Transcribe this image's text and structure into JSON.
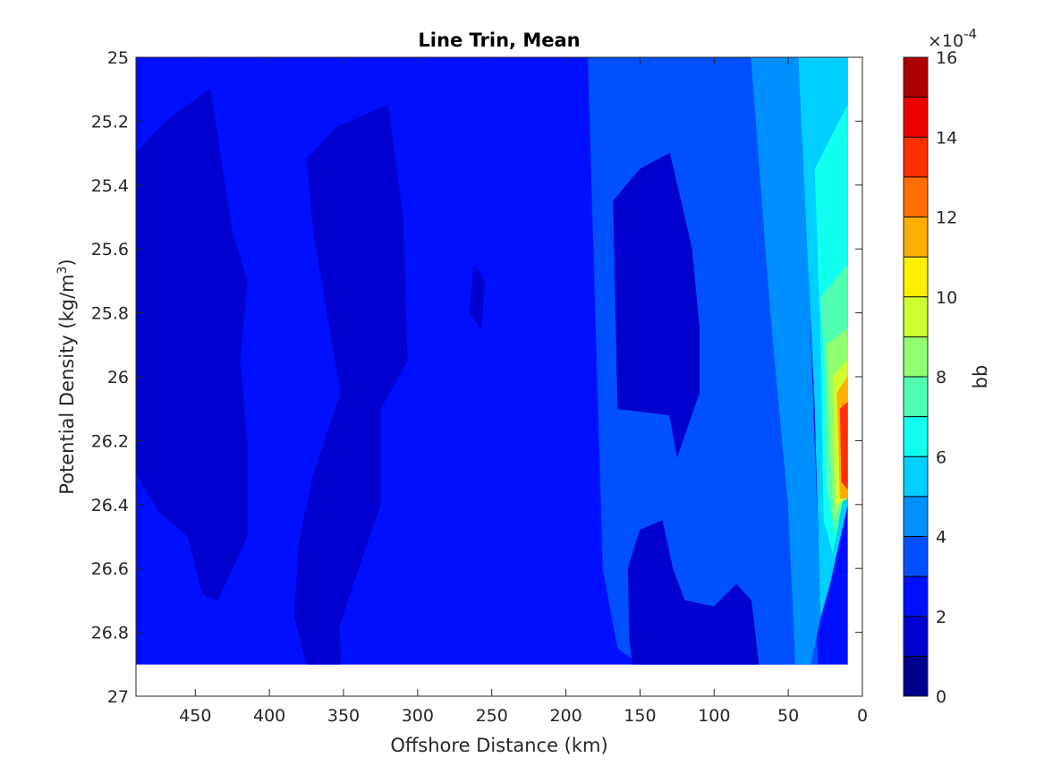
{
  "chart_data": {
    "type": "heatmap",
    "title": "Line Trin, Mean",
    "xlabel": "Offshore Distance (km)",
    "ylabel": "Potential Density (kg/m",
    "ylabel_sup": "3",
    "ylabel_close": ")",
    "x_reversed": true,
    "y_reversed": true,
    "xlim": [
      490,
      0
    ],
    "ylim": [
      25,
      27
    ],
    "x_ticks": [
      450,
      400,
      350,
      300,
      250,
      200,
      150,
      100,
      50,
      0
    ],
    "y_ticks": [
      "25",
      "25.2",
      "25.4",
      "25.6",
      "25.8",
      "26",
      "26.2",
      "26.4",
      "26.6",
      "26.8",
      "27"
    ],
    "colorbar": {
      "label": "bb",
      "exponent_prefix": "×10",
      "exponent": "-4",
      "ticks": [
        0,
        2,
        4,
        6,
        8,
        10,
        12,
        14,
        16
      ],
      "levels": [
        0,
        1,
        2,
        3,
        4,
        5,
        6,
        7,
        8,
        9,
        10,
        11,
        12,
        13,
        14,
        15,
        16
      ],
      "colors": [
        "#00008f",
        "#0000cf",
        "#0010ff",
        "#0050ff",
        "#008fff",
        "#00cfff",
        "#10ffef",
        "#50ffaf",
        "#8fff6f",
        "#cfff30",
        "#ffef00",
        "#ffaf00",
        "#ff6f00",
        "#ff3000",
        "#ef0000",
        "#af0000"
      ]
    },
    "data_extent": {
      "x_min": 10,
      "x_max": 490,
      "y_top": 25,
      "y_bottom": 26.9
    },
    "regions": [
      {
        "level": 2,
        "name": "background",
        "points": [
          [
            490,
            25
          ],
          [
            10,
            25
          ],
          [
            10,
            26.9
          ],
          [
            490,
            26.9
          ]
        ]
      },
      {
        "level": 3,
        "name": "nearshore-band",
        "points": [
          [
            185,
            25
          ],
          [
            50,
            25
          ],
          [
            30,
            26.9
          ],
          [
            150,
            26.9
          ],
          [
            165,
            26.85
          ],
          [
            175,
            26.6
          ]
        ]
      },
      {
        "level": 4,
        "name": "coastal-band",
        "points": [
          [
            75,
            25
          ],
          [
            42,
            25
          ],
          [
            28,
            26.75
          ],
          [
            35,
            26.9
          ],
          [
            45,
            26.9
          ],
          [
            50,
            26.4
          ],
          [
            62,
            25.8
          ]
        ]
      },
      {
        "level": 5,
        "name": "coastal-inner",
        "points": [
          [
            43,
            25
          ],
          [
            10,
            25
          ],
          [
            10,
            26.4
          ],
          [
            22,
            26.65
          ],
          [
            28,
            26.75
          ],
          [
            32,
            26.1
          ],
          [
            38,
            25.5
          ]
        ]
      },
      {
        "level": 6,
        "name": "coastal-high-a",
        "points": [
          [
            32,
            25.35
          ],
          [
            10,
            25.15
          ],
          [
            10,
            26.3
          ],
          [
            20,
            26.55
          ],
          [
            26,
            26.45
          ],
          [
            28,
            25.9
          ]
        ]
      },
      {
        "level": 7,
        "name": "coastal-high-b",
        "points": [
          [
            28,
            25.75
          ],
          [
            10,
            25.65
          ],
          [
            10,
            26.3
          ],
          [
            18,
            26.5
          ],
          [
            24,
            26.35
          ],
          [
            25,
            26
          ]
        ]
      },
      {
        "level": 8,
        "name": "coastal-high-c",
        "points": [
          [
            24,
            25.9
          ],
          [
            10,
            25.85
          ],
          [
            10,
            26.35
          ],
          [
            19,
            26.45
          ],
          [
            22,
            26.2
          ]
        ]
      },
      {
        "level": 9,
        "name": "coastal-high-d",
        "points": [
          [
            20,
            26.0
          ],
          [
            10,
            25.95
          ],
          [
            10,
            26.38
          ],
          [
            18,
            26.4
          ],
          [
            19,
            26.2
          ]
        ]
      },
      {
        "level": 11,
        "name": "coastal-peak-a",
        "points": [
          [
            17,
            26.05
          ],
          [
            10,
            26.0
          ],
          [
            10,
            26.38
          ],
          [
            15,
            26.38
          ],
          [
            16,
            26.2
          ]
        ]
      },
      {
        "level": 13,
        "name": "coastal-peak-b",
        "points": [
          [
            15,
            26.1
          ],
          [
            10,
            26.08
          ],
          [
            10,
            26.35
          ],
          [
            14,
            26.33
          ]
        ]
      },
      {
        "level": 1,
        "name": "offshore-low-west",
        "points": [
          [
            490,
            25.3
          ],
          [
            470,
            25.2
          ],
          [
            440,
            25.1
          ],
          [
            425,
            25.55
          ],
          [
            415,
            25.7
          ],
          [
            420,
            25.95
          ],
          [
            415,
            26.2
          ],
          [
            415,
            26.5
          ],
          [
            435,
            26.7
          ],
          [
            445,
            26.68
          ],
          [
            455,
            26.5
          ],
          [
            475,
            26.42
          ],
          [
            490,
            26.3
          ]
        ]
      },
      {
        "level": 1,
        "name": "offshore-low-middle",
        "points": [
          [
            375,
            25.32
          ],
          [
            355,
            25.22
          ],
          [
            320,
            25.15
          ],
          [
            310,
            25.5
          ],
          [
            307,
            25.95
          ],
          [
            325,
            26.1
          ],
          [
            325,
            26.4
          ],
          [
            340,
            26.6
          ],
          [
            353,
            26.78
          ],
          [
            352,
            26.9
          ],
          [
            375,
            26.9
          ],
          [
            383,
            26.75
          ],
          [
            380,
            26.52
          ],
          [
            370,
            26.3
          ],
          [
            352,
            26.05
          ],
          [
            370,
            25.55
          ]
        ]
      },
      {
        "level": 1,
        "name": "offshore-low-spot",
        "points": [
          [
            262,
            25.65
          ],
          [
            255,
            25.7
          ],
          [
            257,
            25.85
          ],
          [
            265,
            25.8
          ]
        ]
      },
      {
        "level": 1,
        "name": "nearshore-low-upper",
        "points": [
          [
            168,
            25.45
          ],
          [
            150,
            25.35
          ],
          [
            130,
            25.3
          ],
          [
            115,
            25.6
          ],
          [
            110,
            25.85
          ],
          [
            110,
            26.05
          ],
          [
            125,
            26.25
          ],
          [
            130,
            26.12
          ],
          [
            165,
            26.1
          ]
        ]
      },
      {
        "level": 1,
        "name": "nearshore-low-lower",
        "points": [
          [
            135,
            26.45
          ],
          [
            150,
            26.48
          ],
          [
            158,
            26.6
          ],
          [
            157,
            26.82
          ],
          [
            155,
            26.9
          ],
          [
            105,
            26.9
          ],
          [
            70,
            26.9
          ],
          [
            75,
            26.7
          ],
          [
            85,
            26.65
          ],
          [
            100,
            26.72
          ],
          [
            120,
            26.7
          ],
          [
            128,
            26.6
          ]
        ]
      }
    ]
  }
}
